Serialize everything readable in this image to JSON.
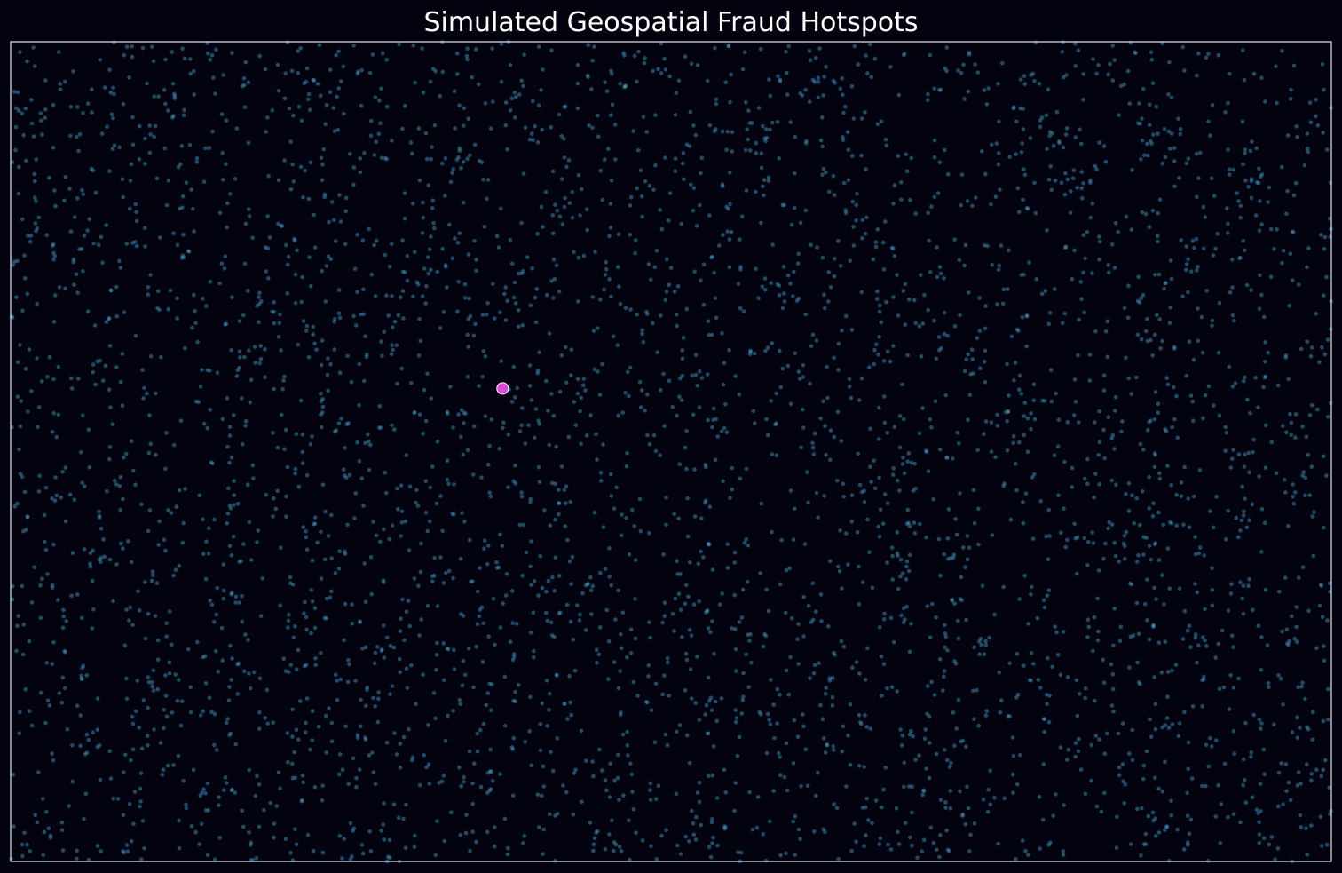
{
  "chart_data": {
    "type": "scatter",
    "title": "Simulated Geospatial Fraud Hotspots",
    "xlabel": "",
    "ylabel": "",
    "xlim": [
      0,
      1
    ],
    "ylim": [
      0,
      1
    ],
    "grid": false,
    "axes_ticks": false,
    "background_color": "#03030f",
    "frame_color": "#e6e6ee",
    "series": [
      {
        "role": "background",
        "color": "#3aa7d6",
        "opacity": 0.45,
        "count": 4200,
        "distribution": "approximately uniform over the plot area"
      },
      {
        "role": "highlight",
        "color": "#e046e0",
        "edge_color": "#ffffff",
        "points": [
          {
            "x": 0.3725,
            "y": 0.577
          }
        ]
      }
    ]
  }
}
